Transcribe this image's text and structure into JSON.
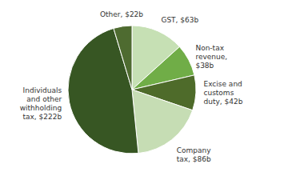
{
  "chart_data": {
    "type": "pie",
    "categories": [
      "GST, $63b",
      "Non-tax\nrevenue,\n$38b",
      "Excise and\ncustoms\nduty, $42b",
      "Company\ntax, $86b",
      "Individuals\nand other\nwithholding\ntax, $222b",
      "Other, $22b"
    ],
    "values": [
      63,
      38,
      42,
      86,
      222,
      22
    ],
    "colors": [
      "#c6e0b4",
      "#70ad47",
      "#4e6b2a",
      "#c6ddb4",
      "#375623",
      "#4e6b30"
    ]
  }
}
